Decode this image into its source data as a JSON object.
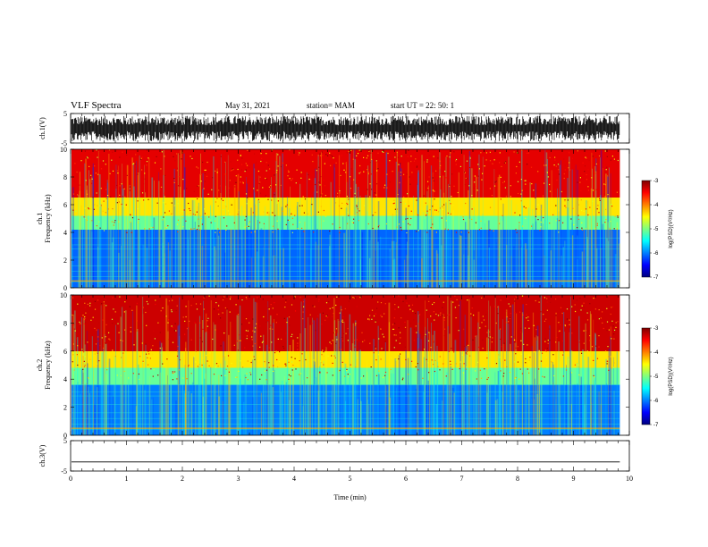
{
  "header": {
    "title": "VLF Spectra",
    "date": "May 31, 2021",
    "station": "station= MAM",
    "start": "start  UT  =   22: 50: 1"
  },
  "colors": {
    "jet": [
      "#00007f",
      "#0000ff",
      "#007fff",
      "#00ffff",
      "#7fff7f",
      "#ffff00",
      "#ff7f00",
      "#ff0000",
      "#7f0000"
    ],
    "trace": "#000000",
    "frame": "#000000"
  },
  "chart_data": [
    {
      "type": "line",
      "name": "ch1-waveform",
      "ylabel": "ch.1(V)",
      "ylim": [
        -5,
        5
      ],
      "yticks": [
        "5",
        "-5"
      ],
      "xlim": [
        0,
        10
      ],
      "description_values": "dense noise trace roughly between -4 and 4 V, ending near 9.8 min"
    },
    {
      "type": "heatmap",
      "name": "ch1-spectrogram",
      "ylabel_lines": [
        "ch.1",
        "Frequency  (kHz)"
      ],
      "ylim": [
        0,
        10
      ],
      "yticks": [
        "0",
        "2",
        "4",
        "6",
        "8",
        "10"
      ],
      "xlim": [
        0,
        10
      ],
      "data_extent_min": 9.83,
      "colorbar": {
        "ticks": [
          "-3",
          "-4",
          "-5",
          "-6",
          "-7"
        ],
        "label": "log(PSD)(V²/Hz)",
        "range": [
          -7,
          -3
        ]
      },
      "bands_khz": [
        {
          "from": 0,
          "to": 4.2,
          "level": -6.1
        },
        {
          "from": 4.2,
          "to": 5.2,
          "level": -5.1
        },
        {
          "from": 5.2,
          "to": 6.5,
          "level": -4.4
        },
        {
          "from": 6.5,
          "to": 10,
          "level": -3.4
        }
      ]
    },
    {
      "type": "heatmap",
      "name": "ch2-spectrogram",
      "ylabel_lines": [
        "ch.2",
        "Frequency  (kHz)"
      ],
      "ylim": [
        0,
        10
      ],
      "yticks": [
        "0",
        "2",
        "4",
        "6",
        "8",
        "10"
      ],
      "xlim": [
        0,
        10
      ],
      "data_extent_min": 9.83,
      "colorbar": {
        "ticks": [
          "-3",
          "-4",
          "-5",
          "-6",
          "-7"
        ],
        "label": "log(PSD)(V²/Hz)",
        "range": [
          -7,
          -3
        ]
      },
      "bands_khz": [
        {
          "from": 0,
          "to": 3.6,
          "level": -6.0
        },
        {
          "from": 3.6,
          "to": 4.8,
          "level": -5.1
        },
        {
          "from": 4.8,
          "to": 6.0,
          "level": -4.4
        },
        {
          "from": 6.0,
          "to": 10,
          "level": -3.3
        }
      ]
    },
    {
      "type": "line",
      "name": "ch3-waveform",
      "ylabel": "ch.3(V)",
      "ylim": [
        -5,
        5
      ],
      "yticks": [
        "5",
        "-5"
      ],
      "xlim": [
        0,
        10
      ],
      "constant_value": -2.0,
      "xlabel": "Time  (min)",
      "xticks": [
        "0",
        "1",
        "2",
        "3",
        "4",
        "5",
        "6",
        "7",
        "8",
        "9",
        "10"
      ]
    }
  ]
}
